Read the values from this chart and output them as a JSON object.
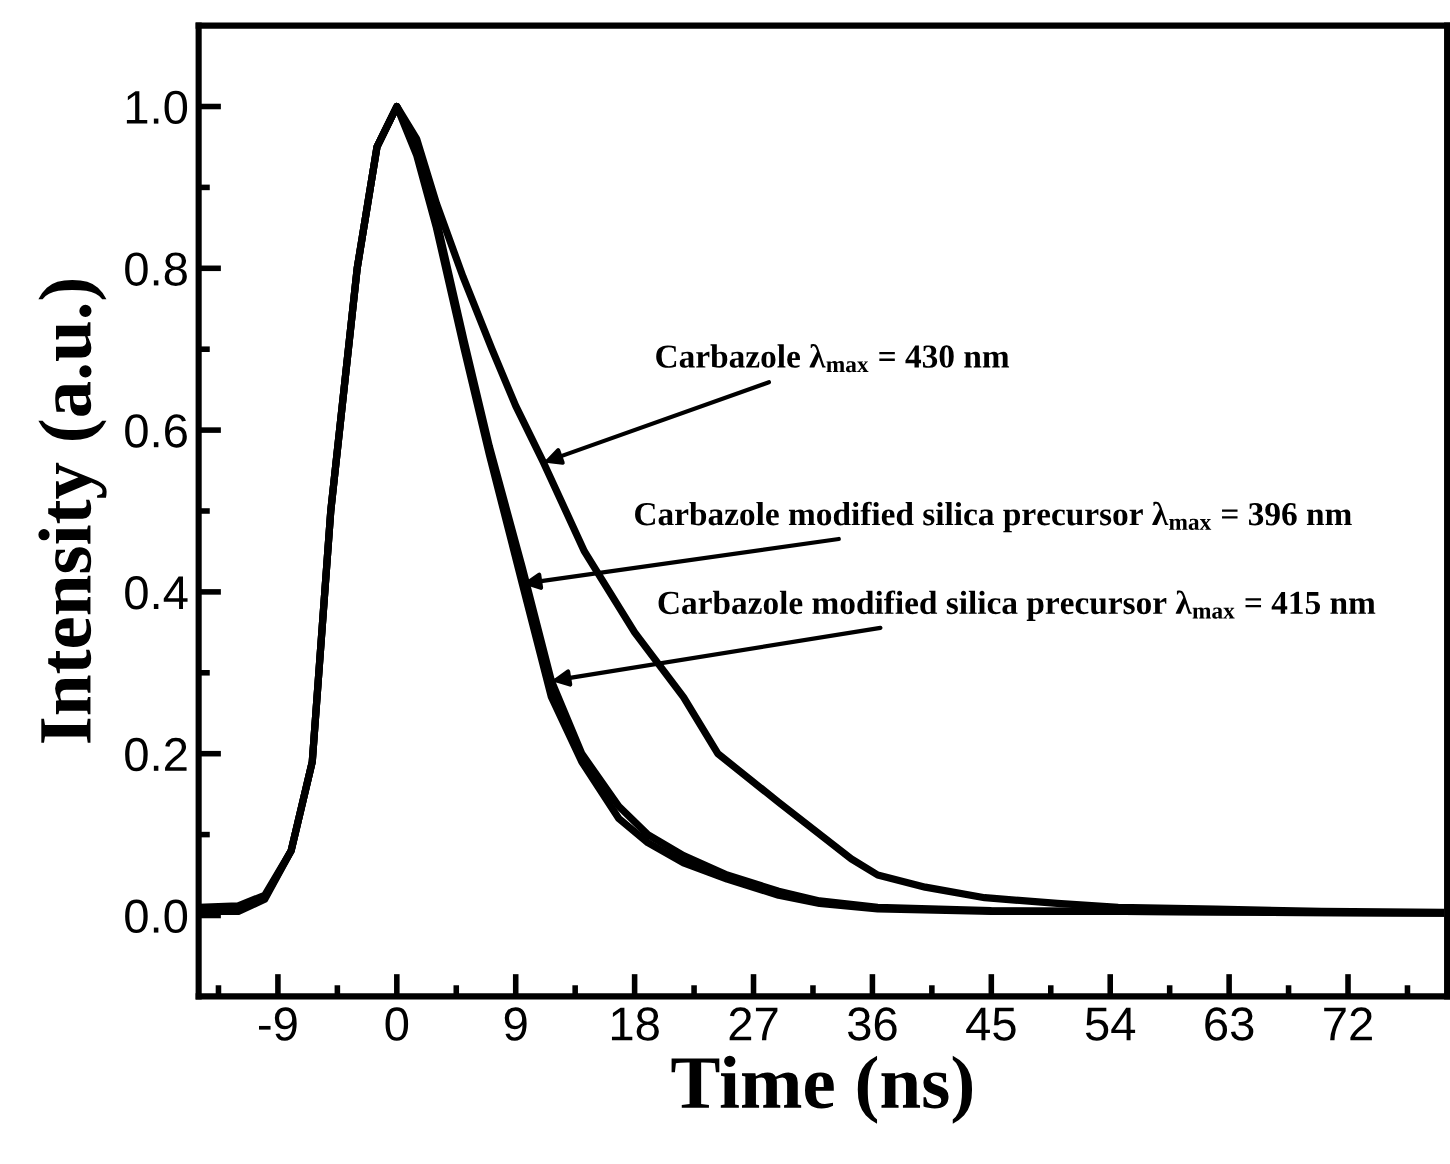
{
  "chart_data": {
    "type": "line",
    "xlabel": "Time (ns)",
    "ylabel": "Intensity (a.u.)",
    "xlim": [
      -15,
      79.5
    ],
    "ylim": [
      -0.1,
      1.1
    ],
    "xticks": [
      {
        "value": -13.5,
        "label": null
      },
      -9,
      {
        "value": -4.5,
        "label": null
      },
      0,
      {
        "value": 4.5,
        "label": null
      },
      9,
      {
        "value": 13.5,
        "label": null
      },
      18,
      {
        "value": 22.5,
        "label": null
      },
      27,
      {
        "value": 31.5,
        "label": null
      },
      36,
      {
        "value": 40.5,
        "label": null
      },
      45,
      {
        "value": 49.5,
        "label": null
      },
      54,
      {
        "value": 58.5,
        "label": null
      },
      63,
      {
        "value": 67.5,
        "label": null
      },
      72,
      {
        "value": 76.5,
        "label": null
      }
    ],
    "yticks": [
      {
        "value": 0,
        "label": "0.0"
      },
      {
        "value": 0.1,
        "label": null
      },
      0.2,
      {
        "value": 0.3,
        "label": null
      },
      0.4,
      {
        "value": 0.5,
        "label": null
      },
      0.6,
      {
        "value": 0.7,
        "label": null
      },
      0.8,
      {
        "value": 0.9,
        "label": null
      },
      {
        "value": 1,
        "label": "1.0"
      }
    ],
    "grid": false,
    "legend": false,
    "marker": "none",
    "line_style": "solid",
    "series": [
      {
        "color": "#000000",
        "x": [
          -15,
          -12,
          -10,
          -8,
          -6.4,
          -5,
          -3,
          -1.5,
          0,
          1.5,
          3,
          5,
          7.2,
          9,
          11.1,
          14.2,
          18,
          21.7,
          24.3,
          28.9,
          34.4,
          36.4,
          40,
          44.5,
          50,
          54.6,
          62,
          70,
          79
        ],
        "values": [
          0.01,
          0.012,
          0.025,
          0.08,
          0.19,
          0.5,
          0.8,
          0.95,
          1.0,
          0.96,
          0.88,
          0.79,
          0.7,
          0.63,
          0.56,
          0.45,
          0.35,
          0.27,
          0.2,
          0.14,
          0.07,
          0.05,
          0.035,
          0.022,
          0.015,
          0.01,
          0.008,
          0.005,
          0.004
        ]
      },
      {
        "color": "#000000",
        "x": [
          -15,
          -12,
          -10,
          -8,
          -6.4,
          -5,
          -3,
          -1.5,
          0,
          1.5,
          3,
          5.1,
          7,
          9.5,
          11.7,
          14,
          16.8,
          19,
          21.7,
          25,
          28.9,
          32,
          36.4,
          45,
          55,
          65,
          79
        ],
        "values": [
          0.005,
          0.005,
          0.02,
          0.08,
          0.19,
          0.5,
          0.8,
          0.95,
          1.0,
          0.94,
          0.85,
          0.7,
          0.57,
          0.41,
          0.27,
          0.19,
          0.12,
          0.09,
          0.065,
          0.045,
          0.025,
          0.015,
          0.008,
          0.005,
          0.005,
          0.004,
          0.003
        ]
      },
      {
        "color": "#000000",
        "x": [
          -15,
          -12,
          -10,
          -8,
          -6.4,
          -5,
          -3,
          -1.5,
          0,
          1.5,
          3,
          5.1,
          7,
          9.5,
          11.7,
          14,
          16.8,
          19,
          21.7,
          25,
          28.9,
          32,
          36.4,
          45,
          55,
          65,
          79
        ],
        "values": [
          0.008,
          0.01,
          0.022,
          0.08,
          0.19,
          0.5,
          0.8,
          0.95,
          1.0,
          0.95,
          0.86,
          0.71,
          0.58,
          0.43,
          0.29,
          0.2,
          0.135,
          0.1,
          0.074,
          0.05,
          0.03,
          0.018,
          0.01,
          0.006,
          0.005,
          0.004,
          0.003
        ]
      }
    ],
    "annotations": [
      {
        "text": "Carbazole λ$_{max}$ = 430 nm",
        "x": 11.1,
        "y": 0.56
      },
      {
        "text": "Carbazole modified silica precursor λ$_{max}$ = 396 nm",
        "x": 9.5,
        "y": 0.41
      },
      {
        "text": "Carbazole modified silica precursor λ$_{max}$ = 415 nm",
        "x": 11.7,
        "y": 0.29
      }
    ]
  }
}
